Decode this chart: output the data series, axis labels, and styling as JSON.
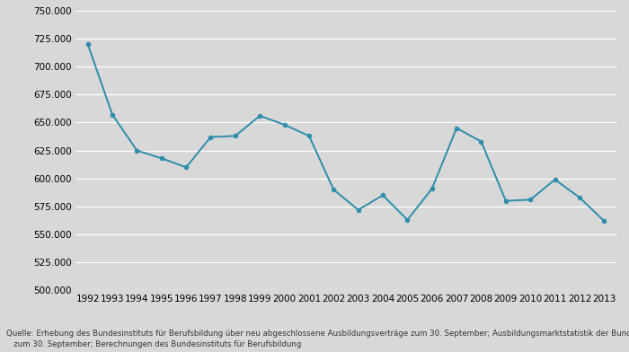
{
  "years": [
    1992,
    1993,
    1994,
    1995,
    1996,
    1997,
    1998,
    1999,
    2000,
    2001,
    2002,
    2003,
    2004,
    2005,
    2006,
    2007,
    2008,
    2009,
    2010,
    2011,
    2012,
    2013
  ],
  "values": [
    720000,
    657000,
    625000,
    618000,
    610000,
    637000,
    638000,
    656000,
    648000,
    638000,
    590000,
    572000,
    585000,
    563000,
    591000,
    645000,
    633000,
    580000,
    581000,
    599000,
    583000,
    562000
  ],
  "line_color": "#2e8daa",
  "marker_color": "#2e8daa",
  "fig_bg_color": "#d8d8d8",
  "plot_bg_color": "#d8d8d8",
  "ylim_min": 500000,
  "ylim_max": 750000,
  "ytick_step": 25000,
  "source_text_line1": "Quelle: Erhebung des Bundesinstituts für Berufsbildung über neu abgeschlossene Ausbildungsverträge zum 30. September; Ausbildungsmarktstatistik der Bundesagentur für Arbeit",
  "source_text_line2": "   zum 30. September; Berechnungen des Bundesinstituts für Berufsbildung",
  "source_fontsize": 6.2,
  "tick_fontsize": 7.5,
  "grid_color": "#ffffff",
  "marker_size": 3.5,
  "line_width": 1.4
}
